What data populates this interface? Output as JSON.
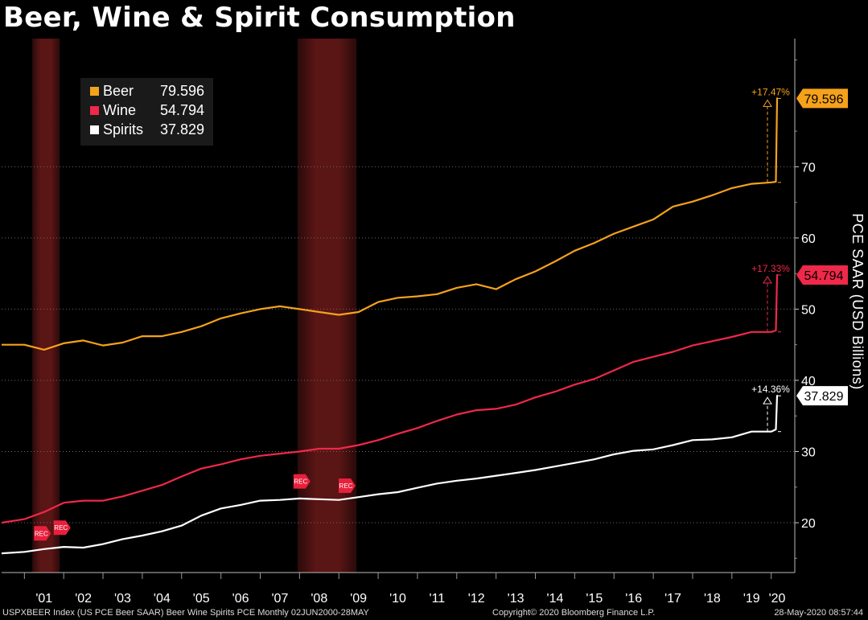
{
  "chart_data": {
    "type": "line",
    "title": "Beer, Wine & Spirit Consumption",
    "ylabel": "PCE SAAR (USD Billions)",
    "xlabel": "",
    "ylim": [
      13,
      88
    ],
    "x_tick_labels": [
      "'01",
      "'02",
      "'03",
      "'04",
      "'05",
      "'06",
      "'07",
      "'08",
      "'09",
      "'10",
      "'11",
      "'12",
      "'13",
      "'14",
      "'15",
      "'16",
      "'17",
      "'18",
      "'19",
      "'20"
    ],
    "y_ticks": [
      20,
      30,
      40,
      50,
      60,
      70
    ],
    "recession_label": "REC",
    "recessions": [
      [
        2001.2,
        2001.9
      ],
      [
        2007.95,
        2009.45
      ]
    ],
    "legend": [
      {
        "name": "Beer",
        "value": "79.596",
        "color": "#f5a21b"
      },
      {
        "name": "Wine",
        "value": "54.794",
        "color": "#f0284a"
      },
      {
        "name": "Spirits",
        "value": "37.829",
        "color": "#ffffff"
      }
    ],
    "series": [
      {
        "name": "Beer",
        "color": "#f5a21b",
        "last_label": "79.596",
        "change_label": "+17.47%",
        "points": [
          [
            2000.42,
            45.0
          ],
          [
            2001.0,
            45.0
          ],
          [
            2001.5,
            44.3
          ],
          [
            2002.0,
            45.2
          ],
          [
            2002.5,
            45.6
          ],
          [
            2003.0,
            44.9
          ],
          [
            2003.5,
            45.3
          ],
          [
            2004.0,
            46.2
          ],
          [
            2004.5,
            46.2
          ],
          [
            2005.0,
            46.8
          ],
          [
            2005.5,
            47.6
          ],
          [
            2006.0,
            48.7
          ],
          [
            2006.5,
            49.4
          ],
          [
            2007.0,
            50.0
          ],
          [
            2007.5,
            50.4
          ],
          [
            2008.0,
            50.0
          ],
          [
            2008.5,
            49.6
          ],
          [
            2009.0,
            49.2
          ],
          [
            2009.5,
            49.6
          ],
          [
            2010.0,
            51.0
          ],
          [
            2010.5,
            51.6
          ],
          [
            2011.0,
            51.8
          ],
          [
            2011.5,
            52.1
          ],
          [
            2012.0,
            53.0
          ],
          [
            2012.5,
            53.5
          ],
          [
            2013.0,
            52.8
          ],
          [
            2013.5,
            54.2
          ],
          [
            2014.0,
            55.3
          ],
          [
            2014.5,
            56.7
          ],
          [
            2015.0,
            58.2
          ],
          [
            2015.5,
            59.3
          ],
          [
            2016.0,
            60.6
          ],
          [
            2016.5,
            61.6
          ],
          [
            2017.0,
            62.6
          ],
          [
            2017.5,
            64.4
          ],
          [
            2018.0,
            65.1
          ],
          [
            2018.5,
            66.0
          ],
          [
            2019.0,
            67.0
          ],
          [
            2019.5,
            67.6
          ],
          [
            2020.0,
            67.8
          ],
          [
            2020.12,
            67.9
          ],
          [
            2020.15,
            79.596
          ],
          [
            2020.17,
            79.596
          ]
        ]
      },
      {
        "name": "Wine",
        "color": "#f0284a",
        "last_label": "54.794",
        "change_label": "+17.33%",
        "points": [
          [
            2000.42,
            20.0
          ],
          [
            2001.0,
            20.5
          ],
          [
            2001.5,
            21.5
          ],
          [
            2002.0,
            22.8
          ],
          [
            2002.5,
            23.1
          ],
          [
            2003.0,
            23.1
          ],
          [
            2003.5,
            23.7
          ],
          [
            2004.0,
            24.5
          ],
          [
            2004.5,
            25.3
          ],
          [
            2005.0,
            26.5
          ],
          [
            2005.5,
            27.6
          ],
          [
            2006.0,
            28.2
          ],
          [
            2006.5,
            28.9
          ],
          [
            2007.0,
            29.4
          ],
          [
            2007.5,
            29.7
          ],
          [
            2008.0,
            30.0
          ],
          [
            2008.5,
            30.4
          ],
          [
            2009.0,
            30.4
          ],
          [
            2009.5,
            30.9
          ],
          [
            2010.0,
            31.6
          ],
          [
            2010.5,
            32.5
          ],
          [
            2011.0,
            33.3
          ],
          [
            2011.5,
            34.3
          ],
          [
            2012.0,
            35.2
          ],
          [
            2012.5,
            35.8
          ],
          [
            2013.0,
            36.0
          ],
          [
            2013.5,
            36.6
          ],
          [
            2014.0,
            37.6
          ],
          [
            2014.5,
            38.4
          ],
          [
            2015.0,
            39.4
          ],
          [
            2015.5,
            40.2
          ],
          [
            2016.0,
            41.4
          ],
          [
            2016.5,
            42.6
          ],
          [
            2017.0,
            43.3
          ],
          [
            2017.5,
            44.0
          ],
          [
            2018.0,
            44.9
          ],
          [
            2018.5,
            45.5
          ],
          [
            2019.0,
            46.1
          ],
          [
            2019.5,
            46.8
          ],
          [
            2020.0,
            46.8
          ],
          [
            2020.12,
            47.0
          ],
          [
            2020.15,
            54.794
          ],
          [
            2020.17,
            54.794
          ]
        ]
      },
      {
        "name": "Spirits",
        "color": "#ffffff",
        "last_label": "37.829",
        "change_label": "+14.36%",
        "points": [
          [
            2000.42,
            15.7
          ],
          [
            2001.0,
            15.9
          ],
          [
            2001.5,
            16.3
          ],
          [
            2002.0,
            16.6
          ],
          [
            2002.5,
            16.5
          ],
          [
            2003.0,
            17.0
          ],
          [
            2003.5,
            17.7
          ],
          [
            2004.0,
            18.2
          ],
          [
            2004.5,
            18.8
          ],
          [
            2005.0,
            19.6
          ],
          [
            2005.5,
            21.0
          ],
          [
            2006.0,
            22.0
          ],
          [
            2006.5,
            22.5
          ],
          [
            2007.0,
            23.1
          ],
          [
            2007.5,
            23.2
          ],
          [
            2008.0,
            23.4
          ],
          [
            2008.5,
            23.3
          ],
          [
            2009.0,
            23.2
          ],
          [
            2009.5,
            23.6
          ],
          [
            2010.0,
            24.0
          ],
          [
            2010.5,
            24.3
          ],
          [
            2011.0,
            24.9
          ],
          [
            2011.5,
            25.5
          ],
          [
            2012.0,
            25.9
          ],
          [
            2012.5,
            26.2
          ],
          [
            2013.0,
            26.6
          ],
          [
            2013.5,
            27.0
          ],
          [
            2014.0,
            27.4
          ],
          [
            2014.5,
            27.9
          ],
          [
            2015.0,
            28.4
          ],
          [
            2015.5,
            28.9
          ],
          [
            2016.0,
            29.6
          ],
          [
            2016.5,
            30.1
          ],
          [
            2017.0,
            30.3
          ],
          [
            2017.5,
            30.9
          ],
          [
            2018.0,
            31.6
          ],
          [
            2018.5,
            31.7
          ],
          [
            2019.0,
            32.0
          ],
          [
            2019.5,
            32.8
          ],
          [
            2020.0,
            32.8
          ],
          [
            2020.12,
            33.1
          ],
          [
            2020.15,
            37.829
          ],
          [
            2020.17,
            37.829
          ]
        ]
      }
    ]
  },
  "footer": {
    "left": "USPXBEER Index (US PCE Beer SAAR) Beer Wine Spirits PCE  Monthly 02JUN2000-28MAY",
    "middle": "Copyright© 2020 Bloomberg Finance L.P.",
    "right": "28-May-2020 08:57:44"
  }
}
